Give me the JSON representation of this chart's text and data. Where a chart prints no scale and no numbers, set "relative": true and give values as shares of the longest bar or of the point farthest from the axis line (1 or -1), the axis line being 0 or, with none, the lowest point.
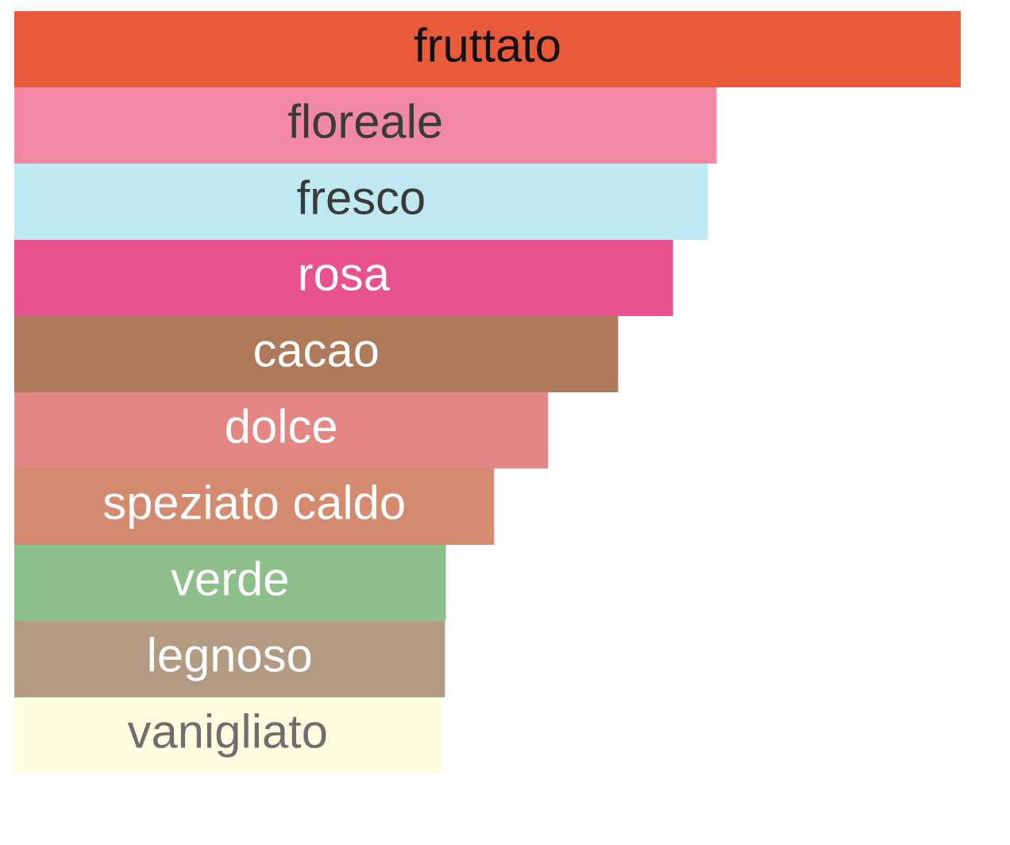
{
  "chart_data": {
    "type": "bar",
    "orientation": "horizontal",
    "relative": true,
    "categories": [
      "fruttato",
      "floreale",
      "fresco",
      "rosa",
      "cacao",
      "dolce",
      "speziato caldo",
      "verde",
      "legnoso",
      "vanigliato"
    ],
    "values": [
      1,
      0.742,
      0.733,
      0.696,
      0.638,
      0.564,
      0.507,
      0.456,
      0.455,
      0.451
    ],
    "colors": [
      "#e85a3a",
      "#f088a6",
      "#bfe9f0",
      "#e9528e",
      "#ae7a5a",
      "#e48784",
      "#d48a6e",
      "#8dbf8a",
      "#b39a82",
      "#fffde0"
    ]
  }
}
